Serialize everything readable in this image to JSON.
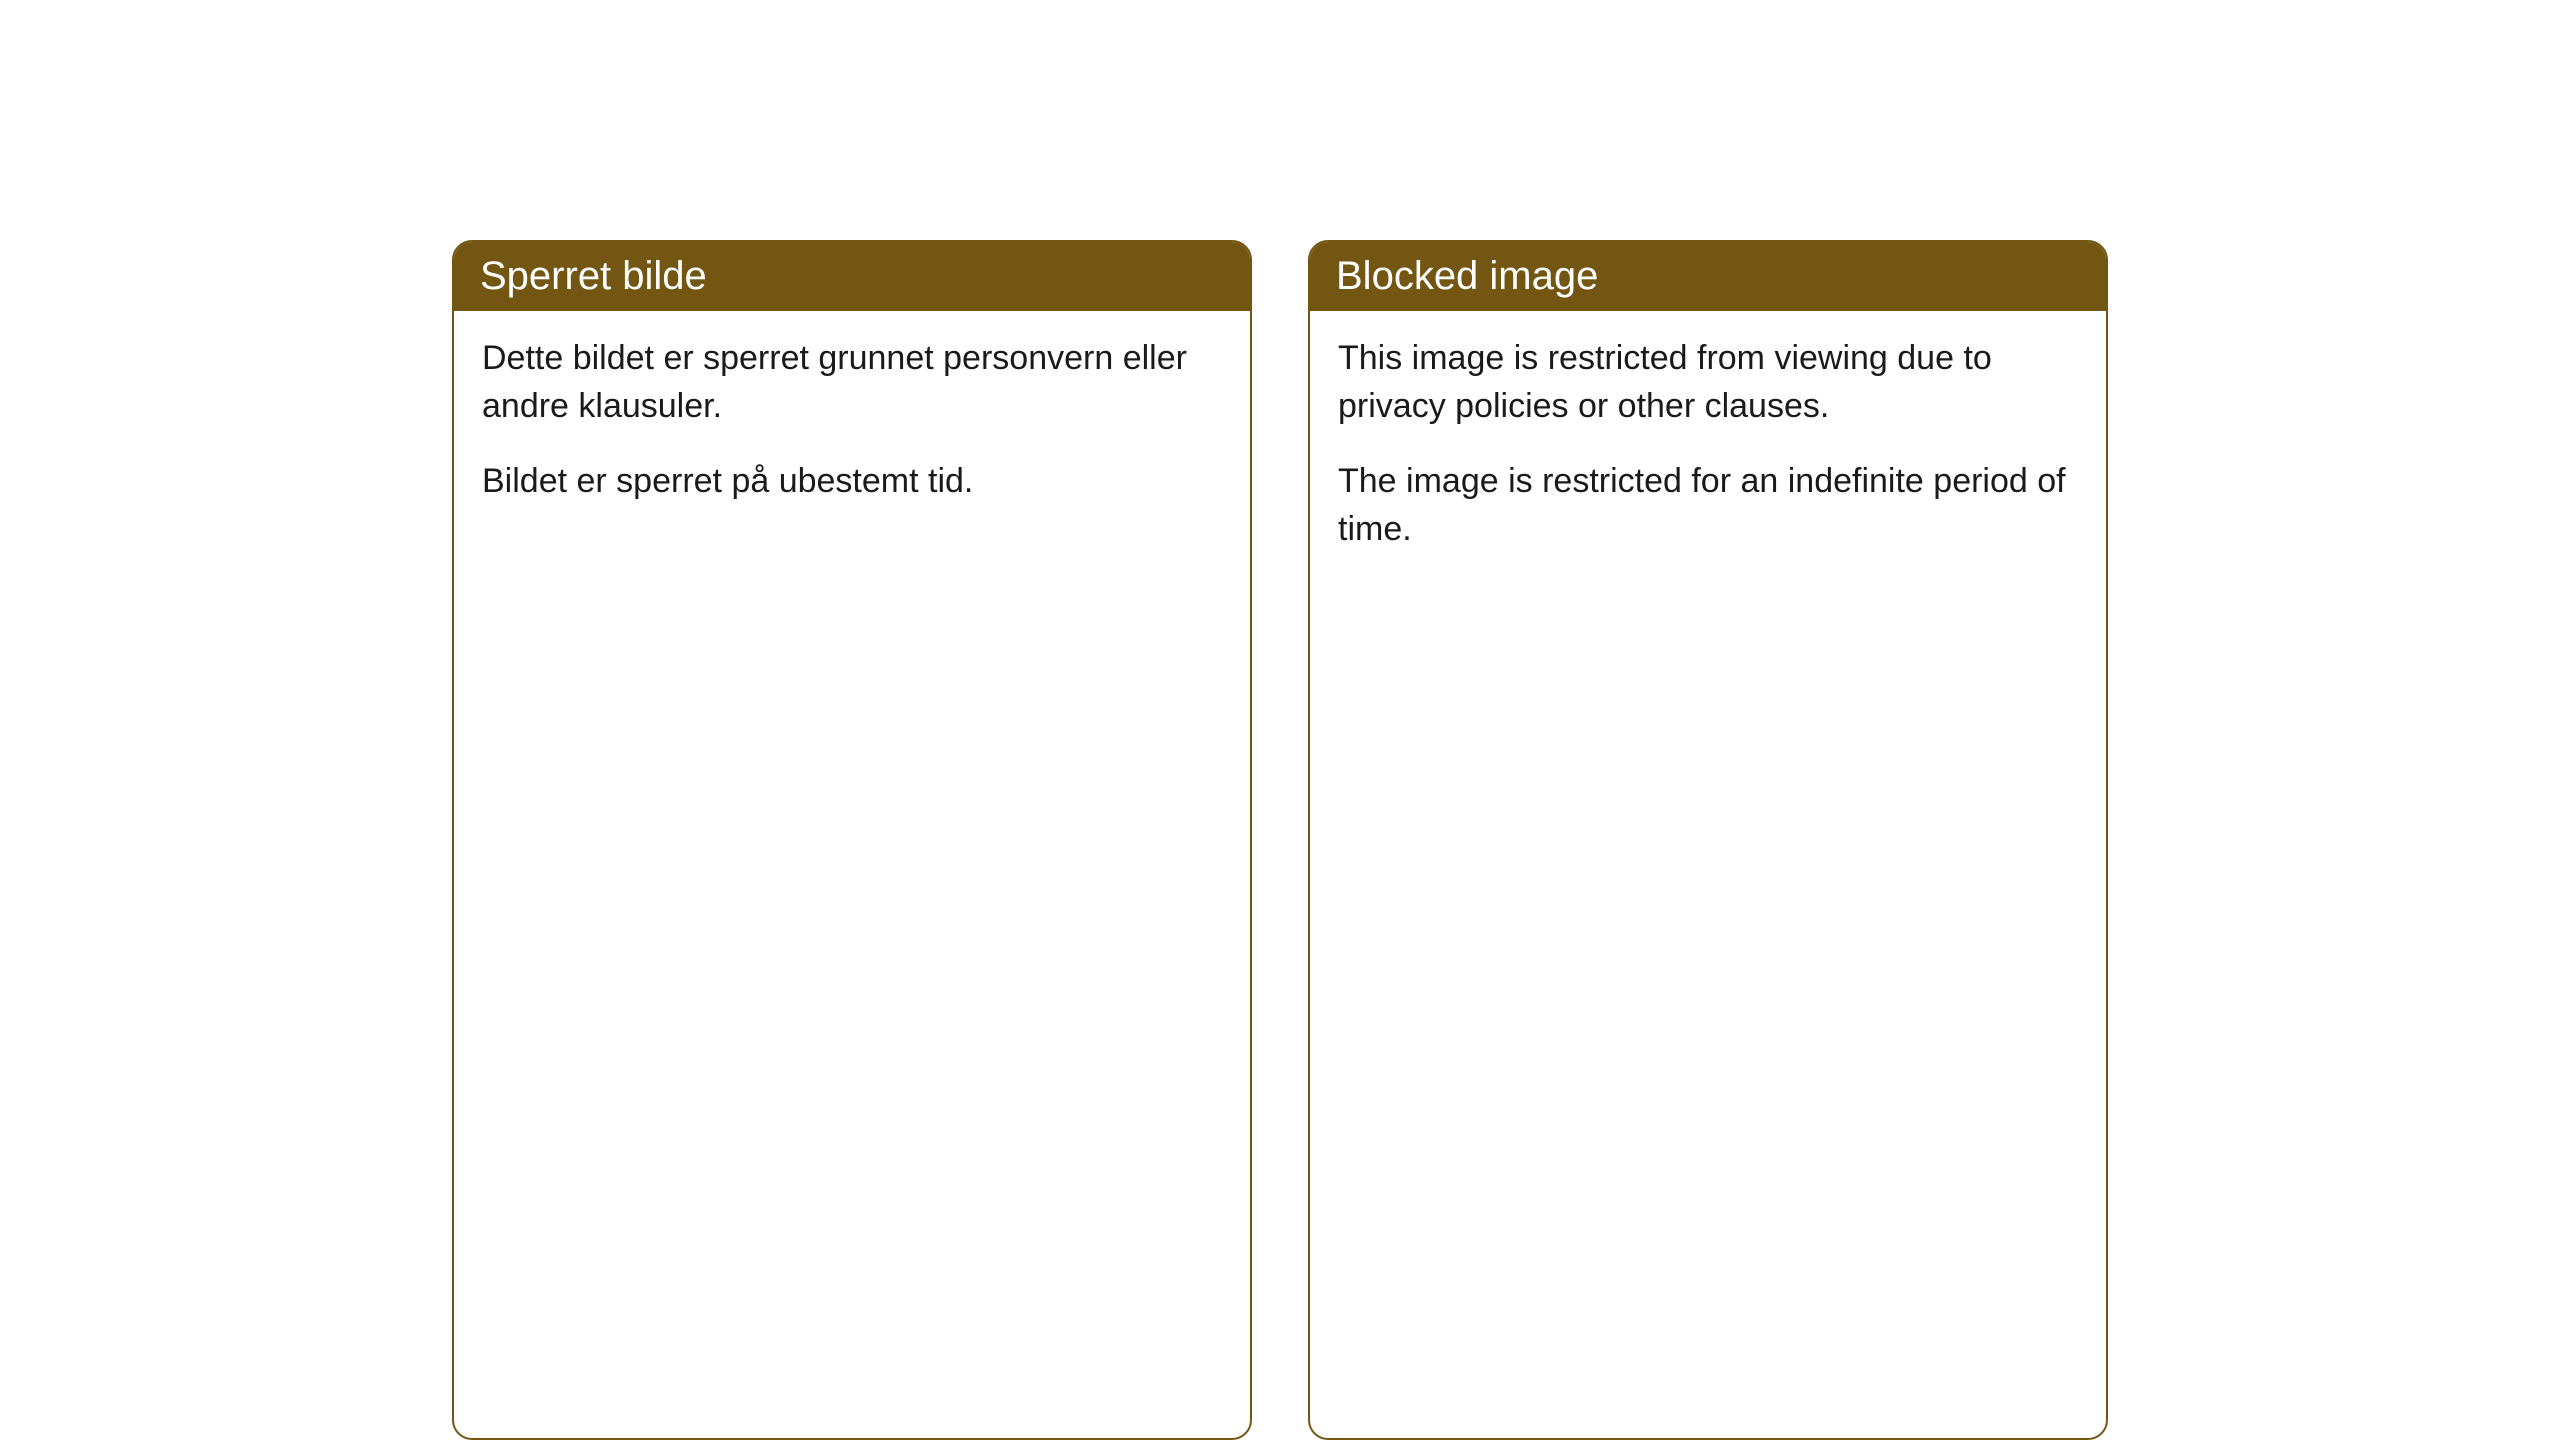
{
  "cards": [
    {
      "title": "Sperret bilde",
      "paragraph1": "Dette bildet er sperret grunnet personvern eller andre klausuler.",
      "paragraph2": "Bildet er sperret på ubestemt tid."
    },
    {
      "title": "Blocked image",
      "paragraph1": "This image is restricted from viewing due to privacy policies or other clauses.",
      "paragraph2": "The image is restricted for an indefinite period of time."
    }
  ],
  "styles": {
    "header_background": "#735612",
    "header_text_color": "#ffffff",
    "border_color": "#735612",
    "body_background": "#ffffff",
    "body_text_color": "#1a1a1a",
    "border_radius": 20,
    "title_fontsize": 40,
    "body_fontsize": 34
  }
}
